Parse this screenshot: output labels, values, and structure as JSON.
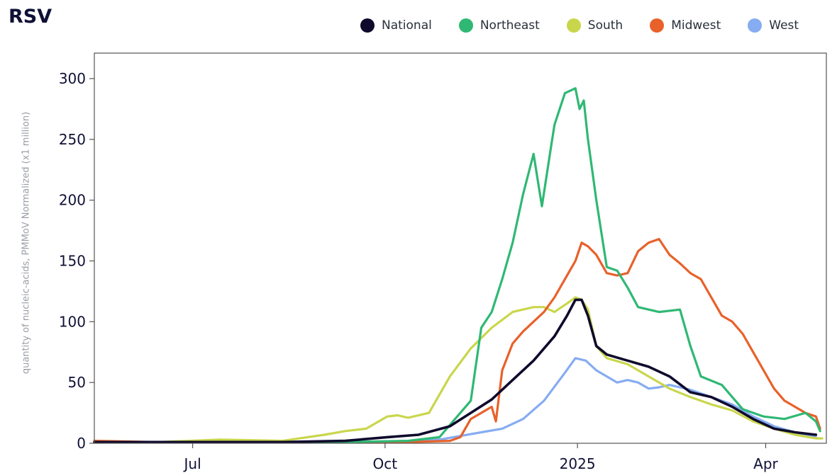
{
  "title": "RSV",
  "legend": [
    {
      "label": "National",
      "color": "#0f0a2c"
    },
    {
      "label": "Northeast",
      "color": "#2fb874"
    },
    {
      "label": "South",
      "color": "#c9d64c"
    },
    {
      "label": "Midwest",
      "color": "#e8612a"
    },
    {
      "label": "West",
      "color": "#86acf2"
    }
  ],
  "chart_data": {
    "type": "line",
    "title": "RSV",
    "xlabel": "",
    "ylabel": "quantity of nucleic-acids, PMMoV Normalized (x1 million)",
    "x_unit": "days since 2024-05-15",
    "xlim": [
      0,
      350
    ],
    "ylim": [
      0,
      300
    ],
    "y_ticks": [
      0,
      50,
      100,
      150,
      200,
      250,
      300
    ],
    "x_ticks": [
      {
        "label": "Jul",
        "x": 47
      },
      {
        "label": "Oct",
        "x": 139
      },
      {
        "label": "2025",
        "x": 231
      },
      {
        "label": "Apr",
        "x": 321
      }
    ],
    "series": [
      {
        "name": "National",
        "color": "#0f0a2c",
        "x": [
          0,
          30,
          60,
          90,
          120,
          140,
          155,
          170,
          180,
          190,
          200,
          210,
          220,
          226,
          230,
          233,
          236,
          240,
          245,
          255,
          265,
          275,
          285,
          295,
          305,
          315,
          325,
          335,
          345
        ],
        "y": [
          1,
          1,
          1,
          1,
          2,
          5,
          7,
          14,
          25,
          36,
          52,
          68,
          88,
          105,
          118,
          118,
          105,
          80,
          73,
          68,
          63,
          55,
          42,
          38,
          30,
          20,
          12,
          9,
          7
        ]
      },
      {
        "name": "Northeast",
        "color": "#2fb874",
        "x": [
          0,
          30,
          60,
          90,
          120,
          150,
          165,
          180,
          185,
          190,
          195,
          200,
          205,
          210,
          214,
          218,
          220,
          225,
          230,
          232,
          234,
          236,
          240,
          245,
          250,
          255,
          260,
          270,
          280,
          285,
          290,
          300,
          310,
          320,
          330,
          340,
          345,
          347
        ],
        "y": [
          1,
          1,
          1,
          1,
          1,
          2,
          5,
          35,
          95,
          108,
          135,
          165,
          205,
          238,
          195,
          240,
          262,
          288,
          292,
          275,
          282,
          250,
          200,
          145,
          142,
          128,
          112,
          108,
          110,
          80,
          55,
          48,
          28,
          22,
          20,
          25,
          18,
          10
        ]
      },
      {
        "name": "South",
        "color": "#c9d64c",
        "x": [
          0,
          30,
          60,
          90,
          110,
          120,
          130,
          140,
          145,
          150,
          160,
          170,
          180,
          190,
          200,
          210,
          215,
          220,
          226,
          230,
          233,
          236,
          240,
          245,
          255,
          265,
          275,
          285,
          295,
          305,
          315,
          325,
          335,
          345,
          348
        ],
        "y": [
          1,
          1,
          3,
          2,
          7,
          10,
          12,
          22,
          23,
          21,
          25,
          55,
          78,
          95,
          108,
          112,
          112,
          108,
          115,
          120,
          118,
          110,
          80,
          70,
          65,
          55,
          45,
          38,
          32,
          27,
          18,
          12,
          7,
          4,
          4
        ]
      },
      {
        "name": "Midwest",
        "color": "#e8612a",
        "x": [
          0,
          30,
          60,
          90,
          120,
          150,
          170,
          175,
          180,
          190,
          192,
          195,
          200,
          205,
          210,
          215,
          220,
          225,
          230,
          233,
          236,
          240,
          245,
          250,
          255,
          260,
          265,
          270,
          275,
          280,
          285,
          290,
          295,
          300,
          305,
          310,
          315,
          320,
          325,
          330,
          335,
          340,
          345,
          347
        ],
        "y": [
          2,
          1,
          1,
          1,
          1,
          1,
          2,
          5,
          20,
          30,
          18,
          60,
          82,
          92,
          100,
          108,
          120,
          135,
          150,
          165,
          162,
          155,
          140,
          138,
          140,
          158,
          165,
          168,
          155,
          148,
          140,
          135,
          120,
          105,
          100,
          90,
          75,
          60,
          45,
          35,
          30,
          25,
          22,
          12
        ]
      },
      {
        "name": "West",
        "color": "#86acf2",
        "x": [
          0,
          30,
          60,
          90,
          120,
          150,
          165,
          175,
          185,
          195,
          205,
          215,
          225,
          230,
          235,
          240,
          245,
          250,
          255,
          260,
          265,
          270,
          275,
          280,
          285,
          295,
          305,
          315,
          325,
          335,
          345
        ],
        "y": [
          1,
          1,
          1,
          1,
          1,
          1,
          3,
          6,
          9,
          12,
          20,
          35,
          58,
          70,
          68,
          60,
          55,
          50,
          52,
          50,
          45,
          46,
          48,
          46,
          44,
          38,
          32,
          22,
          14,
          9,
          5
        ]
      }
    ]
  }
}
